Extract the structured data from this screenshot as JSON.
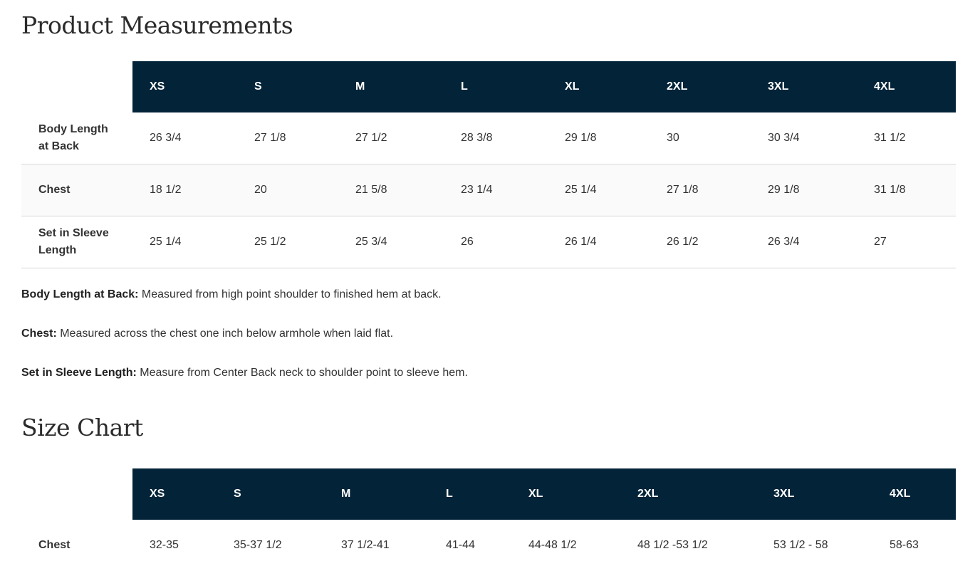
{
  "measurements": {
    "title": "Product Measurements",
    "sizes": [
      "XS",
      "S",
      "M",
      "L",
      "XL",
      "2XL",
      "3XL",
      "4XL"
    ],
    "rows": [
      {
        "label": "Body Length at Back",
        "values": [
          "26 3/4",
          "27 1/8",
          "27 1/2",
          "28 3/8",
          "29 1/8",
          "30",
          "30 3/4",
          "31 1/2"
        ]
      },
      {
        "label": "Chest",
        "values": [
          "18 1/2",
          "20",
          "21 5/8",
          "23 1/4",
          "25 1/4",
          "27 1/8",
          "29 1/8",
          "31 1/8"
        ]
      },
      {
        "label": "Set in Sleeve Length",
        "values": [
          "25 1/4",
          "25 1/2",
          "25 3/4",
          "26",
          "26 1/4",
          "26 1/2",
          "26 3/4",
          "27"
        ]
      }
    ],
    "notes": [
      {
        "term": "Body Length at Back:",
        "text": " Measured from high point shoulder to finished hem at back."
      },
      {
        "term": "Chest:",
        "text": " Measured across the chest one inch below armhole when laid flat."
      },
      {
        "term": "Set in Sleeve Length:",
        "text": " Measure from Center Back neck to shoulder point to sleeve hem."
      }
    ]
  },
  "size_chart": {
    "title": "Size Chart",
    "sizes": [
      "XS",
      "S",
      "M",
      "L",
      "XL",
      "2XL",
      "3XL",
      "4XL"
    ],
    "rows": [
      {
        "label": "Chest",
        "values": [
          "32-35",
          "35-37 1/2",
          "37 1/2-41",
          "41-44",
          "44-48 1/2",
          "48 1/2 -53 1/2",
          "53 1/2 - 58",
          "58-63"
        ]
      }
    ]
  },
  "colors": {
    "header_bg": "#022338",
    "header_text": "#ffffff"
  }
}
